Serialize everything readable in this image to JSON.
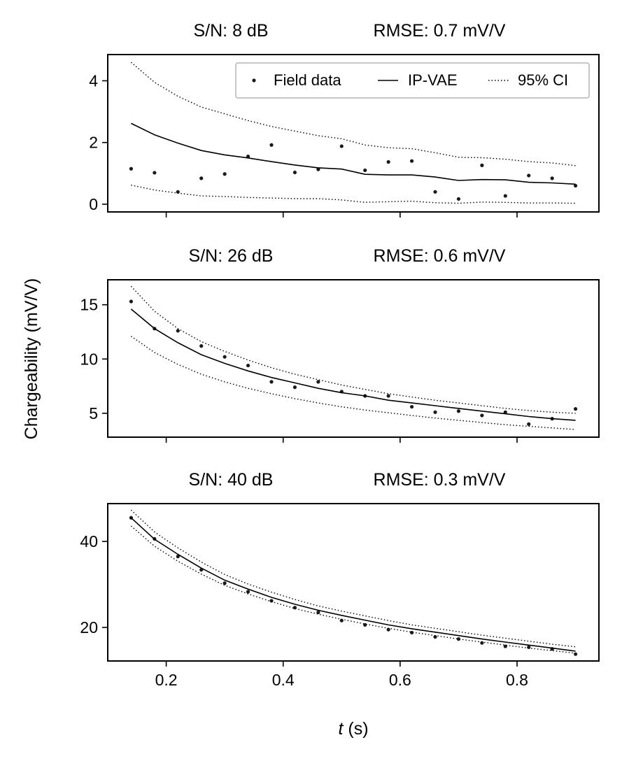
{
  "figure": {
    "ylabel": "Chargeability (mV/V)",
    "xlabel_var": "t",
    "xlabel_unit": " (s)"
  },
  "legend": {
    "field": "Field data",
    "model": "IP-VAE",
    "ci": "95% CI"
  },
  "chart_data": [
    {
      "type": "line",
      "title_sn": "S/N: 8 dB",
      "title_rmse": "RMSE: 0.7 mV/V",
      "xlabel": "",
      "ylabel": "Chargeability (mV/V)",
      "xlim": [
        0.1,
        0.94
      ],
      "ylim": [
        -0.25,
        4.85
      ],
      "xticks": [
        0.2,
        0.4,
        0.6,
        0.8
      ],
      "xtick_labels": [
        "",
        "",
        "",
        ""
      ],
      "yticks": [
        0,
        2,
        4
      ],
      "ytick_labels": [
        "0",
        "2",
        "4"
      ],
      "legend_position": "top-right",
      "x": [
        0.14,
        0.18,
        0.22,
        0.26,
        0.3,
        0.34,
        0.38,
        0.42,
        0.46,
        0.5,
        0.54,
        0.58,
        0.62,
        0.66,
        0.7,
        0.74,
        0.78,
        0.82,
        0.86,
        0.9
      ],
      "series": [
        {
          "name": "Field data",
          "style": "points",
          "values": [
            1.15,
            1.02,
            0.4,
            0.84,
            0.98,
            1.55,
            1.92,
            1.03,
            1.13,
            1.88,
            1.1,
            1.37,
            1.4,
            0.4,
            0.17,
            1.26,
            0.27,
            0.93,
            0.84,
            0.6
          ]
        },
        {
          "name": "IP-VAE",
          "style": "solid",
          "values": [
            2.62,
            2.25,
            1.98,
            1.74,
            1.6,
            1.5,
            1.38,
            1.27,
            1.18,
            1.14,
            0.97,
            0.95,
            0.95,
            0.88,
            0.77,
            0.8,
            0.79,
            0.71,
            0.69,
            0.65
          ]
        },
        {
          "name": "95% CI upper",
          "style": "dotted",
          "values": [
            4.6,
            3.95,
            3.5,
            3.15,
            2.93,
            2.71,
            2.52,
            2.37,
            2.22,
            2.12,
            1.92,
            1.83,
            1.8,
            1.67,
            1.52,
            1.51,
            1.46,
            1.38,
            1.34,
            1.25
          ]
        },
        {
          "name": "95% CI lower",
          "style": "dotted",
          "values": [
            0.62,
            0.46,
            0.36,
            0.27,
            0.25,
            0.22,
            0.2,
            0.18,
            0.18,
            0.14,
            0.06,
            0.08,
            0.1,
            0.05,
            0.03,
            0.07,
            0.06,
            0.04,
            0.04,
            0.03
          ]
        }
      ]
    },
    {
      "type": "line",
      "title_sn": "S/N: 26 dB",
      "title_rmse": "RMSE: 0.6 mV/V",
      "xlabel": "",
      "ylabel": "Chargeability (mV/V)",
      "xlim": [
        0.1,
        0.94
      ],
      "ylim": [
        2.8,
        17.3
      ],
      "xticks": [
        0.2,
        0.4,
        0.6,
        0.8
      ],
      "xtick_labels": [
        "",
        "",
        "",
        ""
      ],
      "yticks": [
        5,
        10,
        15
      ],
      "ytick_labels": [
        "5",
        "10",
        "15"
      ],
      "x": [
        0.14,
        0.18,
        0.22,
        0.26,
        0.3,
        0.34,
        0.38,
        0.42,
        0.46,
        0.5,
        0.54,
        0.58,
        0.62,
        0.66,
        0.7,
        0.74,
        0.78,
        0.82,
        0.86,
        0.9
      ],
      "series": [
        {
          "name": "Field data",
          "style": "points",
          "values": [
            15.3,
            12.8,
            12.6,
            11.2,
            10.2,
            9.4,
            7.9,
            7.4,
            7.9,
            7.0,
            6.6,
            6.6,
            5.6,
            5.1,
            5.2,
            4.8,
            5.1,
            4.0,
            4.5,
            5.4
          ]
        },
        {
          "name": "IP-VAE",
          "style": "solid",
          "values": [
            14.6,
            12.8,
            11.5,
            10.4,
            9.6,
            8.9,
            8.3,
            7.8,
            7.3,
            6.9,
            6.6,
            6.2,
            5.95,
            5.7,
            5.45,
            5.2,
            4.95,
            4.7,
            4.5,
            4.35
          ]
        },
        {
          "name": "95% CI upper",
          "style": "dotted",
          "values": [
            16.7,
            14.4,
            12.8,
            11.6,
            10.7,
            9.9,
            9.2,
            8.6,
            8.1,
            7.6,
            7.2,
            6.8,
            6.5,
            6.2,
            5.95,
            5.7,
            5.45,
            5.25,
            5.1,
            5.0
          ]
        },
        {
          "name": "95% CI lower",
          "style": "dotted",
          "values": [
            12.1,
            10.6,
            9.5,
            8.6,
            7.9,
            7.3,
            6.8,
            6.35,
            5.95,
            5.6,
            5.3,
            5.05,
            4.8,
            4.55,
            4.35,
            4.15,
            3.95,
            3.8,
            3.65,
            3.5
          ]
        }
      ]
    },
    {
      "type": "line",
      "title_sn": "S/N: 40 dB",
      "title_rmse": "RMSE: 0.3 mV/V",
      "xlabel": "t (s)",
      "ylabel": "Chargeability (mV/V)",
      "xlim": [
        0.1,
        0.94
      ],
      "ylim": [
        12.2,
        48.8
      ],
      "xticks": [
        0.2,
        0.4,
        0.6,
        0.8
      ],
      "xtick_labels": [
        "0.2",
        "0.4",
        "0.6",
        "0.8"
      ],
      "yticks": [
        20,
        40
      ],
      "ytick_labels": [
        "20",
        "40"
      ],
      "x": [
        0.14,
        0.18,
        0.22,
        0.26,
        0.3,
        0.34,
        0.38,
        0.42,
        0.46,
        0.5,
        0.54,
        0.58,
        0.62,
        0.66,
        0.7,
        0.74,
        0.78,
        0.82,
        0.86,
        0.9
      ],
      "series": [
        {
          "name": "Field data",
          "style": "points",
          "values": [
            45.5,
            40.6,
            36.5,
            33.4,
            30.3,
            28.3,
            26.2,
            24.6,
            23.5,
            21.6,
            20.6,
            19.5,
            18.8,
            17.8,
            17.3,
            16.4,
            15.6,
            15.4,
            15.0,
            13.8
          ]
        },
        {
          "name": "IP-VAE",
          "style": "solid",
          "values": [
            45.5,
            40.5,
            37.0,
            33.8,
            31.0,
            28.9,
            27.0,
            25.4,
            24.0,
            22.8,
            21.7,
            20.6,
            19.7,
            18.9,
            18.1,
            17.3,
            16.6,
            15.9,
            15.2,
            14.5
          ]
        },
        {
          "name": "95% CI upper",
          "style": "dotted",
          "values": [
            47.3,
            42.2,
            38.5,
            35.2,
            32.3,
            30.1,
            28.2,
            26.5,
            25.0,
            23.8,
            22.7,
            21.6,
            20.6,
            19.8,
            19.0,
            18.2,
            17.5,
            16.8,
            16.1,
            15.5
          ]
        },
        {
          "name": "95% CI lower",
          "style": "dotted",
          "values": [
            43.6,
            38.9,
            35.4,
            32.4,
            29.8,
            27.8,
            26.0,
            24.4,
            23.1,
            21.9,
            20.8,
            19.8,
            18.9,
            18.1,
            17.3,
            16.6,
            15.9,
            15.2,
            14.6,
            14.0
          ]
        }
      ]
    }
  ]
}
